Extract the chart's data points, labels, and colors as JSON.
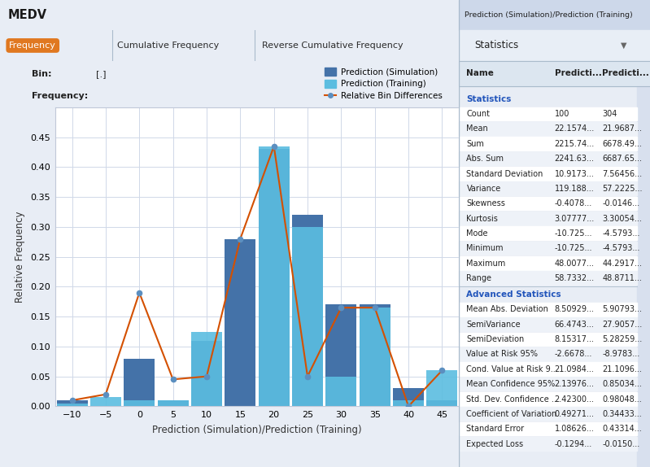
{
  "title": "MEDV",
  "tabs": [
    "Frequency",
    "Cumulative Frequency",
    "Reverse Cumulative Frequency"
  ],
  "bin_label": "Bin:",
  "bin_value": "[.]",
  "freq_label": "Frequency:",
  "xlabel": "Prediction (Simulation)/Prediction (Training)",
  "ylabel": "Relative Frequency",
  "xlim": [
    -12.5,
    47.5
  ],
  "ylim": [
    0.0,
    0.5
  ],
  "yticks": [
    0.0,
    0.05,
    0.1,
    0.15,
    0.2,
    0.25,
    0.3,
    0.35,
    0.4,
    0.45
  ],
  "xticks": [
    -10,
    -5,
    0,
    5,
    10,
    15,
    20,
    25,
    30,
    35,
    40,
    45
  ],
  "bin_centers": [
    -10,
    -5,
    0,
    5,
    10,
    15,
    20,
    25,
    30,
    35,
    40,
    45
  ],
  "sim_bars": [
    0.01,
    0.0,
    0.08,
    0.01,
    0.11,
    0.28,
    0.43,
    0.32,
    0.17,
    0.17,
    0.03,
    0.01
  ],
  "train_bars": [
    0.005,
    0.015,
    0.01,
    0.01,
    0.125,
    0.0,
    0.435,
    0.3,
    0.05,
    0.165,
    0.01,
    0.06
  ],
  "line_x": [
    -10,
    -5,
    0,
    5,
    10,
    15,
    20,
    25,
    30,
    35,
    40,
    45
  ],
  "line_y": [
    0.01,
    0.02,
    0.19,
    0.045,
    0.05,
    0.28,
    0.435,
    0.05,
    0.165,
    0.165,
    0.0,
    0.06
  ],
  "bar_width": 4.6,
  "sim_color": "#4472a8",
  "train_color": "#5bbde0",
  "line_color": "#d45000",
  "marker_fill": "#5b8fc0",
  "bg_color": "#e8edf5",
  "plot_bg": "#ffffff",
  "grid_color": "#d0d8e8",
  "header_color": "#cdd8ea",
  "tab_bar_color": "#c8d4e8",
  "legend_sim": "Prediction (Simulation)",
  "legend_train": "Prediction (Training)",
  "legend_line": "Relative Bin Differences",
  "stats_panel_bg": "#f0f4fa",
  "stats_title": "Prediction (Simulation)/Prediction (Training)",
  "stats_dropdown": "Statistics",
  "stats_headers": [
    "Name",
    "Predicti...",
    "Predicti..."
  ],
  "stats_section1": "Statistics",
  "stats_rows1": [
    [
      "Count",
      "100",
      "304"
    ],
    [
      "Mean",
      "22.1574...",
      "21.9687..."
    ],
    [
      "Sum",
      "2215.74...",
      "6678.49..."
    ],
    [
      "Abs. Sum",
      "2241.63...",
      "6687.65..."
    ],
    [
      "Standard Deviation",
      "10.9173...",
      "7.56456..."
    ],
    [
      "Variance",
      "119.188...",
      "57.2225..."
    ],
    [
      "Skewness",
      "-0.4078...",
      "-0.0146..."
    ],
    [
      "Kurtosis",
      "3.07777...",
      "3.30054..."
    ],
    [
      "Mode",
      "-10.725...",
      "-4.5793..."
    ],
    [
      "Minimum",
      "-10.725...",
      "-4.5793..."
    ],
    [
      "Maximum",
      "48.0077...",
      "44.2917..."
    ],
    [
      "Range",
      "58.7332...",
      "48.8711..."
    ]
  ],
  "stats_section2": "Advanced Statistics",
  "stats_rows2": [
    [
      "Mean Abs. Deviation",
      "8.50929...",
      "5.90793..."
    ],
    [
      "SemiVariance",
      "66.4743...",
      "27.9057..."
    ],
    [
      "SemiDeviation",
      "8.15317...",
      "5.28259..."
    ],
    [
      "Value at Risk 95%",
      "-2.6678...",
      "-8.9783..."
    ],
    [
      "Cond. Value at Risk 9...",
      "21.0984...",
      "21.1096..."
    ],
    [
      "Mean Confidence 95%",
      "2.13976...",
      "0.85034..."
    ],
    [
      "Std. Dev. Confidence ...",
      "2.42300...",
      "0.98048..."
    ],
    [
      "Coefficient of Variation",
      "0.49271...",
      "0.34433..."
    ],
    [
      "Standard Error",
      "1.08626...",
      "0.43314..."
    ],
    [
      "Expected Loss",
      "-0.1294...",
      "-0.0150..."
    ]
  ]
}
